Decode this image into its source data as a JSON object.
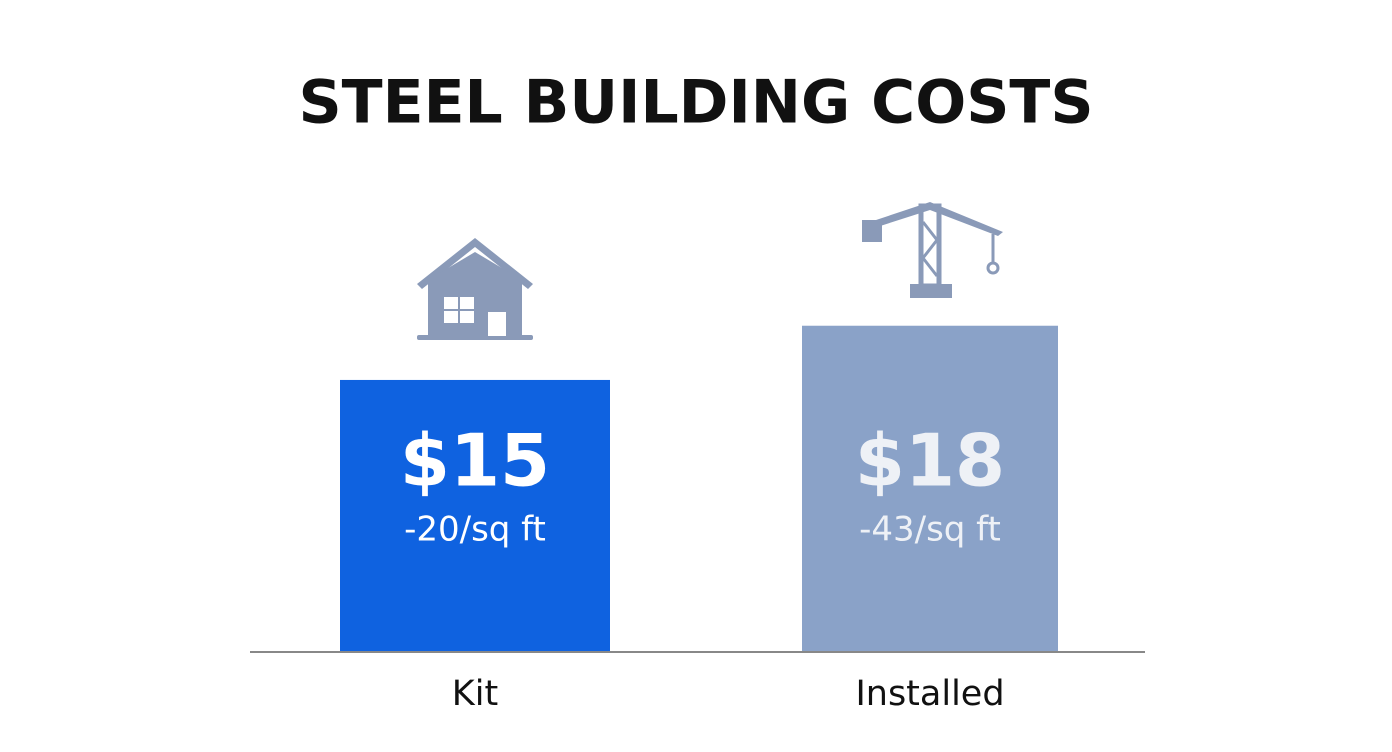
{
  "chart_data": {
    "type": "bar",
    "title": "STEEL BUILDING COSTS",
    "categories": [
      "Kit",
      "Installed"
    ],
    "values": [
      15,
      18
    ],
    "value_labels": [
      "$15",
      "$18"
    ],
    "annotations": [
      "-20/sq ft",
      "-43/sq ft"
    ],
    "colors": [
      "#0f62e0",
      "#8aa2c8"
    ]
  }
}
